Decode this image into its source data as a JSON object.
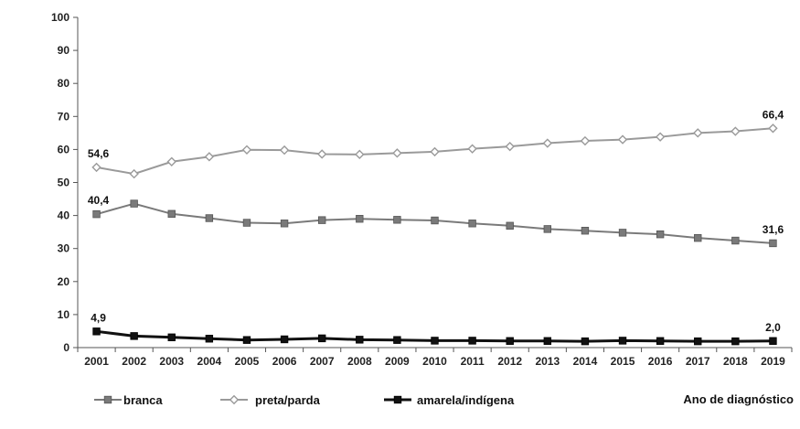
{
  "chart_data": {
    "type": "line",
    "x": [
      "2001",
      "2002",
      "2003",
      "2004",
      "2005",
      "2006",
      "2007",
      "2008",
      "2009",
      "2010",
      "2011",
      "2012",
      "2013",
      "2014",
      "2015",
      "2016",
      "2017",
      "2018",
      "2019"
    ],
    "series": [
      {
        "name": "branca",
        "values": [
          40.4,
          43.6,
          40.5,
          39.2,
          37.8,
          37.6,
          38.6,
          39.0,
          38.7,
          38.5,
          37.6,
          36.9,
          35.9,
          35.4,
          34.8,
          34.3,
          33.2,
          32.4,
          31.6
        ],
        "color": "#7a7a7a",
        "marker": "square",
        "labels": {
          "0": "40,4",
          "18": "31,6"
        }
      },
      {
        "name": "preta/parda",
        "values": [
          54.6,
          52.6,
          56.3,
          57.8,
          59.9,
          59.8,
          58.6,
          58.5,
          58.9,
          59.3,
          60.2,
          60.9,
          61.9,
          62.6,
          63.0,
          63.8,
          65.0,
          65.5,
          66.4
        ],
        "color": "#9a9a9a",
        "marker": "diamond",
        "labels": {
          "0": "54,6",
          "18": "66,4"
        }
      },
      {
        "name": "amarela/indígena",
        "values": [
          4.9,
          3.5,
          3.1,
          2.7,
          2.3,
          2.5,
          2.8,
          2.4,
          2.3,
          2.1,
          2.1,
          2.0,
          2.0,
          1.9,
          2.1,
          2.0,
          1.9,
          1.9,
          2.0
        ],
        "color": "#111111",
        "marker": "square",
        "labels": {
          "0": "4,9",
          "18": "2,0"
        }
      }
    ],
    "y_ticks": [
      "0",
      "10",
      "20",
      "30",
      "40",
      "50",
      "60",
      "70",
      "80",
      "90",
      "100"
    ],
    "ylim": [
      0,
      100
    ],
    "xlabel": "Ano de diagnóstico",
    "grid": false,
    "legend": "bottom"
  }
}
